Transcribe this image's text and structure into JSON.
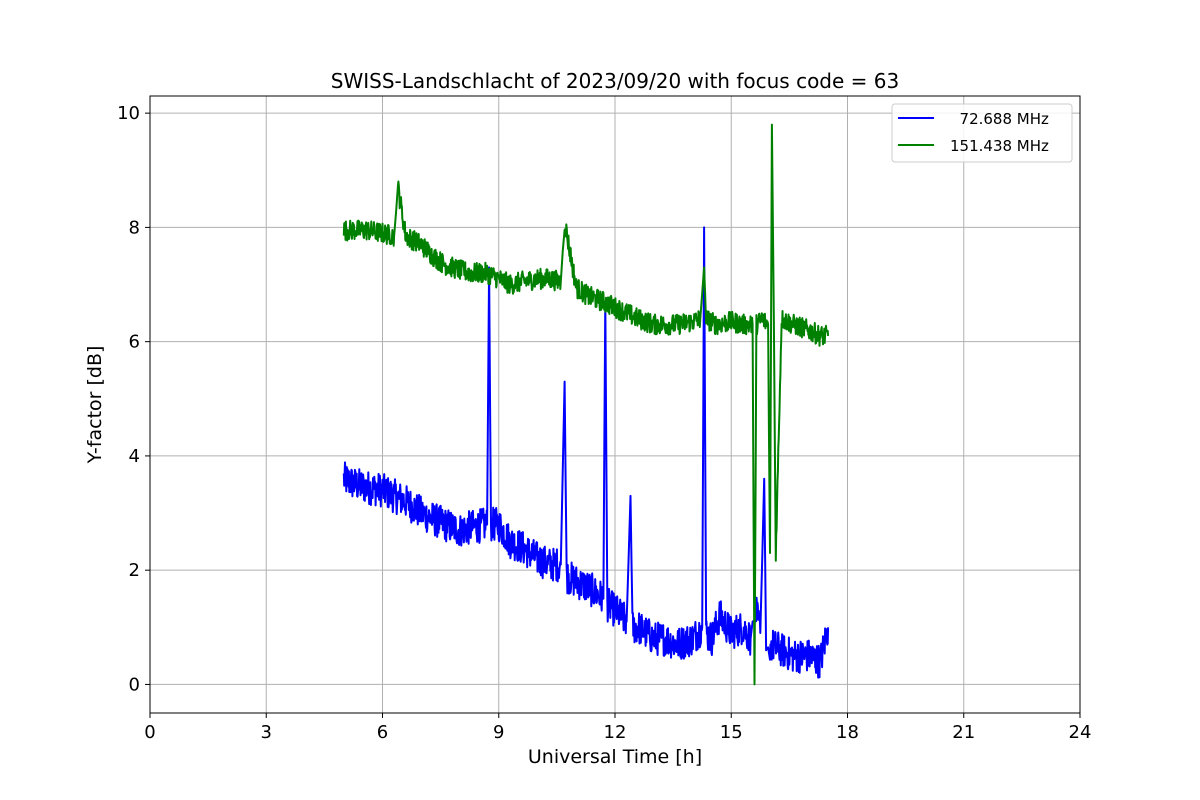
{
  "chart_data": {
    "type": "line",
    "title": "SWISS-Landschlacht of 2023/09/20 with focus code = 63",
    "xlabel": "Universal Time [h]",
    "ylabel": "Y-factor [dB]",
    "xlim": [
      0,
      24
    ],
    "ylim": [
      -0.5,
      10.3
    ],
    "xticks": [
      0,
      3,
      6,
      9,
      12,
      15,
      18,
      21,
      24
    ],
    "xtick_labels": [
      "0",
      "3",
      "6",
      "9",
      "12",
      "15",
      "18",
      "21",
      "24"
    ],
    "yticks": [
      0,
      2,
      4,
      6,
      8,
      10
    ],
    "ytick_labels": [
      "0",
      "2",
      "4",
      "6",
      "8",
      "10"
    ],
    "grid": true,
    "legend_position": "top-right",
    "series": [
      {
        "name": "  72.688 MHz",
        "color": "#0000ff",
        "x": [
          5.0,
          5.3,
          5.6,
          6.0,
          6.3,
          6.6,
          7.0,
          7.3,
          7.6,
          8.0,
          8.3,
          8.7,
          8.75,
          8.8,
          9.0,
          9.3,
          9.6,
          10.0,
          10.3,
          10.6,
          10.7,
          10.75,
          11.0,
          11.3,
          11.7,
          11.75,
          11.8,
          12.0,
          12.3,
          12.4,
          12.45,
          12.6,
          13.0,
          13.3,
          13.6,
          14.0,
          14.25,
          14.3,
          14.35,
          14.5,
          14.7,
          15.0,
          15.3,
          15.5,
          15.6,
          15.75,
          15.85,
          15.9,
          16.0,
          16.3,
          16.6,
          17.0,
          17.3,
          17.5
        ],
        "y": [
          3.6,
          3.5,
          3.45,
          3.4,
          3.3,
          3.2,
          3.0,
          2.9,
          2.8,
          2.7,
          2.75,
          2.8,
          7.3,
          2.8,
          2.8,
          2.5,
          2.4,
          2.2,
          2.1,
          2.1,
          5.3,
          1.9,
          1.8,
          1.7,
          1.5,
          6.7,
          1.4,
          1.3,
          1.1,
          3.3,
          1.0,
          1.0,
          0.8,
          0.8,
          0.7,
          0.8,
          1.0,
          8.0,
          0.9,
          0.8,
          1.2,
          0.9,
          1.0,
          0.8,
          1.4,
          0.9,
          3.6,
          0.6,
          0.7,
          0.6,
          0.5,
          0.5,
          0.4,
          1.0
        ],
        "noise": 0.3
      },
      {
        "name": "151.438 MHz",
        "color": "#008000",
        "x": [
          5.0,
          5.3,
          5.6,
          6.0,
          6.3,
          6.4,
          6.6,
          7.0,
          7.3,
          7.6,
          8.0,
          8.3,
          8.7,
          9.0,
          9.3,
          9.6,
          10.0,
          10.3,
          10.6,
          10.7,
          11.0,
          11.3,
          11.7,
          12.0,
          12.3,
          12.6,
          13.0,
          13.3,
          13.6,
          14.0,
          14.2,
          14.3,
          14.35,
          14.6,
          15.0,
          15.3,
          15.55,
          15.6,
          15.65,
          15.8,
          15.95,
          16.0,
          16.05,
          16.1,
          16.15,
          16.3,
          16.6,
          17.0,
          17.3,
          17.5
        ],
        "y": [
          7.95,
          7.95,
          7.95,
          7.9,
          7.85,
          8.7,
          7.85,
          7.7,
          7.5,
          7.35,
          7.25,
          7.2,
          7.2,
          7.1,
          7.0,
          7.05,
          7.1,
          7.1,
          7.05,
          8.1,
          6.95,
          6.8,
          6.7,
          6.6,
          6.5,
          6.4,
          6.3,
          6.3,
          6.3,
          6.35,
          6.4,
          7.3,
          6.4,
          6.3,
          6.35,
          6.3,
          6.3,
          0.0,
          6.3,
          6.4,
          6.3,
          2.3,
          9.8,
          6.3,
          2.3,
          6.4,
          6.3,
          6.2,
          6.1,
          6.1
        ],
        "noise": 0.18
      }
    ]
  }
}
